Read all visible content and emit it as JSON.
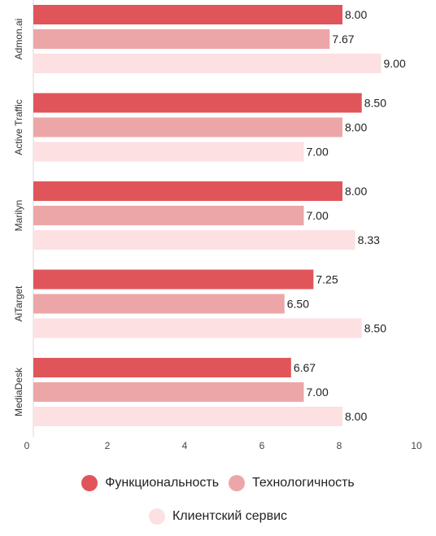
{
  "chart_data": {
    "type": "bar",
    "orientation": "horizontal",
    "categories": [
      "Admon.ai",
      "Active Traffic",
      "Marilyn",
      "AiTarget",
      "MediaDesk"
    ],
    "series": [
      {
        "name": "Функциональность",
        "values": [
          8.0,
          8.5,
          8.0,
          7.25,
          6.67
        ],
        "color": "#e05559"
      },
      {
        "name": "Технологичность",
        "values": [
          7.67,
          8.0,
          7.0,
          6.5,
          7.0
        ],
        "color": "#eda6a7"
      },
      {
        "name": "Клиентский сервис",
        "values": [
          9.0,
          7.0,
          8.33,
          8.5,
          8.0
        ],
        "color": "#fde0e2"
      }
    ],
    "value_labels": [
      [
        "8.00",
        "8.50",
        "8.00",
        "7.25",
        "6.67"
      ],
      [
        "7.67",
        "8.00",
        "7.00",
        "6.50",
        "7.00"
      ],
      [
        "9.00",
        "7.00",
        "8.33",
        "8.50",
        "8.00"
      ]
    ],
    "xlim": [
      0,
      10
    ],
    "x_ticks": [
      "0",
      "2",
      "4",
      "6",
      "8",
      "10"
    ],
    "grid": false,
    "legend_position": "bottom"
  }
}
